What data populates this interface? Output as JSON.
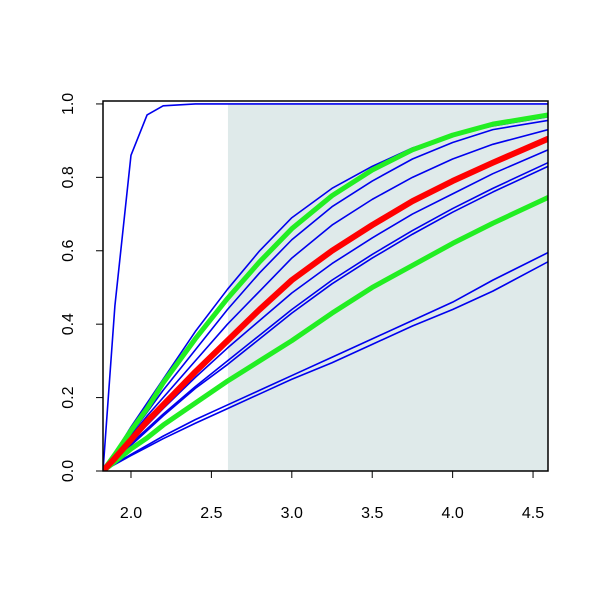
{
  "chart_data": {
    "type": "line",
    "x": [
      1.826,
      1.9,
      2.0,
      2.1,
      2.2,
      2.4,
      2.6,
      2.8,
      3.0,
      3.25,
      3.5,
      3.75,
      4.0,
      4.25,
      4.593
    ],
    "series": [
      {
        "color": "#0000ee",
        "width": 1.6,
        "values": [
          0,
          0.45,
          0.86,
          0.97,
          0.995,
          1,
          1,
          1,
          1,
          1,
          1,
          1,
          1,
          1,
          1
        ]
      },
      {
        "color": "#0000ee",
        "width": 1.6,
        "values": [
          0,
          0.05,
          0.12,
          0.185,
          0.25,
          0.38,
          0.495,
          0.6,
          0.69,
          0.77,
          0.83,
          0.88,
          0.915,
          0.94,
          0.965
        ]
      },
      {
        "color": "#0000ee",
        "width": 1.6,
        "values": [
          0,
          0.04,
          0.1,
          0.16,
          0.22,
          0.33,
          0.44,
          0.54,
          0.63,
          0.72,
          0.79,
          0.85,
          0.895,
          0.93,
          0.955
        ]
      },
      {
        "color": "#0000ee",
        "width": 1.6,
        "values": [
          0,
          0.04,
          0.095,
          0.15,
          0.2,
          0.3,
          0.4,
          0.49,
          0.58,
          0.67,
          0.74,
          0.8,
          0.85,
          0.89,
          0.93
        ]
      },
      {
        "color": "#0000ee",
        "width": 1.6,
        "values": [
          0,
          0.03,
          0.08,
          0.125,
          0.17,
          0.255,
          0.335,
          0.41,
          0.485,
          0.565,
          0.635,
          0.7,
          0.755,
          0.81,
          0.875
        ]
      },
      {
        "color": "#0000ee",
        "width": 1.6,
        "values": [
          0,
          0.03,
          0.075,
          0.115,
          0.155,
          0.23,
          0.3,
          0.37,
          0.44,
          0.52,
          0.59,
          0.655,
          0.715,
          0.77,
          0.84
        ]
      },
      {
        "color": "#0000ee",
        "width": 1.6,
        "values": [
          0,
          0.03,
          0.07,
          0.11,
          0.15,
          0.225,
          0.29,
          0.36,
          0.43,
          0.51,
          0.58,
          0.645,
          0.705,
          0.76,
          0.83
        ]
      },
      {
        "color": "#0000ee",
        "width": 1.6,
        "values": [
          0,
          0.02,
          0.045,
          0.07,
          0.095,
          0.14,
          0.18,
          0.22,
          0.26,
          0.31,
          0.36,
          0.41,
          0.46,
          0.52,
          0.595
        ]
      },
      {
        "color": "#0000ee",
        "width": 1.6,
        "values": [
          0,
          0.018,
          0.042,
          0.065,
          0.088,
          0.13,
          0.17,
          0.21,
          0.25,
          0.295,
          0.345,
          0.395,
          0.44,
          0.49,
          0.57
        ]
      },
      {
        "color": "#22ee22",
        "width": 5,
        "values": [
          0,
          0.045,
          0.11,
          0.17,
          0.24,
          0.36,
          0.47,
          0.57,
          0.66,
          0.75,
          0.82,
          0.875,
          0.915,
          0.945,
          0.97
        ]
      },
      {
        "color": "#22ee22",
        "width": 5,
        "values": [
          0,
          0.025,
          0.06,
          0.09,
          0.125,
          0.185,
          0.245,
          0.3,
          0.355,
          0.43,
          0.5,
          0.56,
          0.62,
          0.675,
          0.745
        ]
      },
      {
        "color": "#ff0000",
        "width": 6,
        "values": [
          0,
          0.035,
          0.085,
          0.135,
          0.18,
          0.27,
          0.355,
          0.44,
          0.52,
          0.6,
          0.67,
          0.735,
          0.79,
          0.84,
          0.905
        ]
      }
    ],
    "shade": {
      "xlim": [
        2.603,
        4.593
      ],
      "ylim": [
        0,
        1
      ],
      "color": "#dfeaea"
    },
    "xlim": [
      1.826,
      4.593
    ],
    "ylim": [
      0,
      1.008
    ],
    "xticks": [
      {
        "value": 2.0,
        "label": "2.0"
      },
      {
        "value": 2.5,
        "label": "2.5"
      },
      {
        "value": 3.0,
        "label": "3.0"
      },
      {
        "value": 3.5,
        "label": "3.5"
      },
      {
        "value": 4.0,
        "label": "4.0"
      },
      {
        "value": 4.5,
        "label": "4.5"
      }
    ],
    "yticks": [
      {
        "value": 0,
        "label": "0.0"
      },
      {
        "value": 0.2,
        "label": "0.2"
      },
      {
        "value": 0.4,
        "label": "0.4"
      },
      {
        "value": 0.6,
        "label": "0.6"
      },
      {
        "value": 0.8,
        "label": "0.8"
      },
      {
        "value": 1.0,
        "label": "1.0"
      }
    ]
  }
}
